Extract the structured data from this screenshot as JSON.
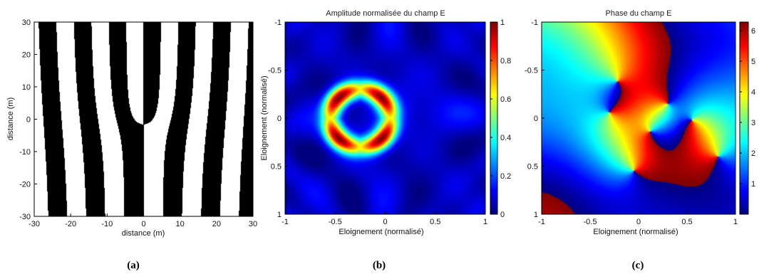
{
  "chart_data": [
    {
      "type": "heatmap",
      "panel": "(a)",
      "title": "",
      "xlabel": "distance (m)",
      "ylabel": "distance (m)",
      "xlim": [
        -30,
        30
      ],
      "ylim": [
        -30,
        30
      ],
      "xticks": [
        -30,
        -20,
        -10,
        0,
        10,
        20,
        30
      ],
      "yticks": [
        30,
        20,
        10,
        0,
        -10,
        -20,
        -30
      ],
      "colors": [
        "#000000",
        "#ffffff"
      ],
      "fringe_pitch_m": 10,
      "fork_dislocation_at": [
        0,
        0
      ]
    },
    {
      "type": "heatmap",
      "panel": "(b)",
      "title": "Amplitude normalisée du champ E",
      "xlabel": "Eloignement (normalisé)",
      "ylabel": "Eloignement (normalisé)",
      "xlim": [
        -1,
        1
      ],
      "ylim": [
        -1,
        1
      ],
      "xticks": [
        "-1",
        "-0.5",
        "0",
        "0.5",
        "1"
      ],
      "yticks": [
        "-1",
        "-0.5",
        "0",
        "0.5",
        "1"
      ],
      "colorbar": {
        "min": 0,
        "max": 1,
        "ticks": [
          "1",
          "0.8",
          "0.6",
          "0.4",
          "0.2",
          "0"
        ]
      },
      "ring_center": [
        -0.25,
        0
      ],
      "ring_radius": 0.3,
      "peaks": [
        [
          -0.42,
          -0.19
        ],
        [
          -0.08,
          -0.19
        ],
        [
          -0.42,
          0.19
        ],
        [
          -0.08,
          0.19
        ]
      ]
    },
    {
      "type": "heatmap",
      "panel": "(c)",
      "title": "Phase du champ E",
      "xlabel": "Eloignement (normalisé)",
      "ylabel": "",
      "xlim": [
        -1,
        1
      ],
      "ylim": [
        -1,
        1
      ],
      "xticks": [
        "-1",
        "-0.5",
        "0",
        "0.5",
        "1"
      ],
      "yticks": [
        "-1",
        "-0.5",
        "0",
        "0.5",
        "1"
      ],
      "colorbar": {
        "min": 0,
        "max": 6.28,
        "ticks": [
          "6",
          "5",
          "4",
          "3",
          "2",
          "1"
        ]
      },
      "phase_vortices": [
        [
          -0.22,
          -0.38,
          1
        ],
        [
          -0.3,
          -0.06,
          -1
        ],
        [
          0.55,
          0.02,
          1
        ],
        [
          0.12,
          0.14,
          -1
        ],
        [
          -0.05,
          0.55,
          1
        ],
        [
          0.82,
          0.4,
          -1
        ],
        [
          0.3,
          -0.15,
          1
        ]
      ]
    }
  ],
  "captions": {
    "a": "(a)",
    "b": "(b)",
    "c": "(c)"
  }
}
